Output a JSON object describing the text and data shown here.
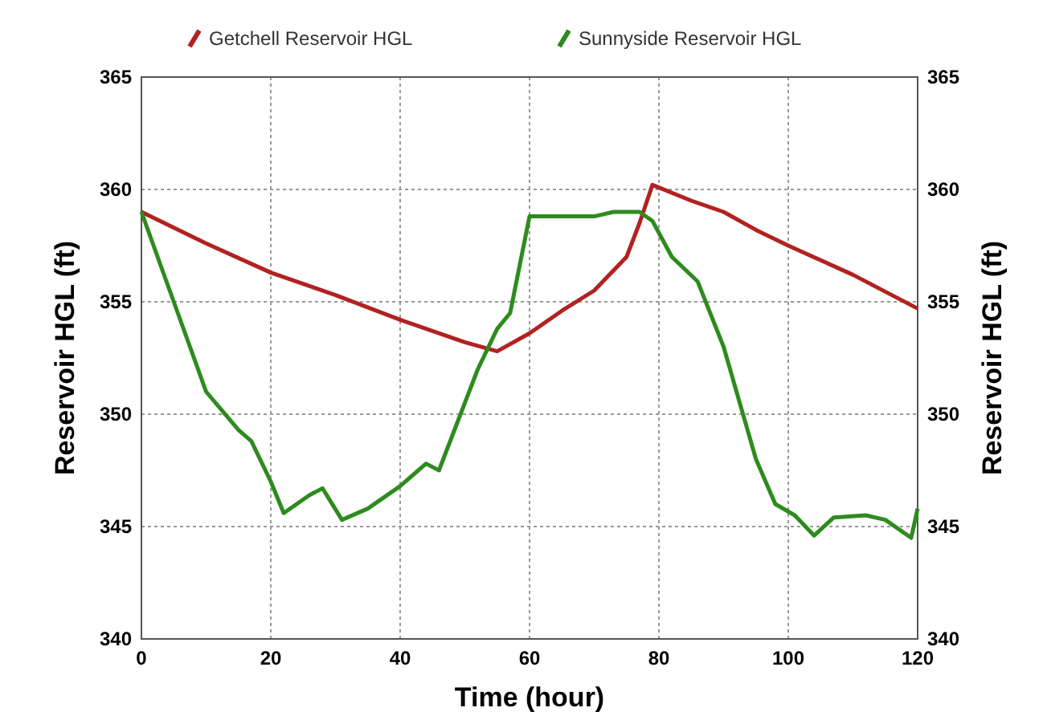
{
  "chart_data": {
    "type": "line",
    "xlabel": "Time (hour)",
    "ylabel": "Reservoir HGL (ft)",
    "y2label": "Reservoir HGL (ft)",
    "xlim": [
      0,
      120
    ],
    "xticks": [
      0,
      20,
      40,
      60,
      80,
      100,
      120
    ],
    "ylim": [
      340,
      365
    ],
    "yticks": [
      340,
      345,
      350,
      355,
      360,
      365
    ],
    "y2lim": [
      340,
      365
    ],
    "y2ticks": [
      340,
      345,
      350,
      355,
      360,
      365
    ],
    "grid": true,
    "legend": "top",
    "marker": "none",
    "line_style": "solid",
    "series": [
      {
        "name": "Getchell Reservoir HGL",
        "color": "#b22222",
        "x": [
          0,
          10,
          20,
          30,
          40,
          50,
          55,
          60,
          65,
          70,
          75,
          77,
          79,
          85,
          90,
          95,
          100,
          110,
          120
        ],
        "values": [
          359,
          357.6,
          356.3,
          355.3,
          354.2,
          353.2,
          352.8,
          353.6,
          354.6,
          355.5,
          357,
          358.5,
          360.2,
          359.5,
          359,
          358.2,
          357.5,
          356.2,
          354.7
        ]
      },
      {
        "name": "Sunnyside Reservoir HGL",
        "color": "#2e8b1e",
        "x": [
          0,
          5,
          10,
          15,
          17,
          20,
          22,
          26,
          28,
          31,
          35,
          40,
          44,
          46,
          48,
          52,
          55,
          57,
          60,
          62,
          70,
          73,
          77,
          79,
          82,
          86,
          90,
          95,
          98,
          101,
          104,
          107,
          112,
          115,
          119,
          120
        ],
        "values": [
          359,
          355,
          351,
          349.3,
          348.8,
          347,
          345.6,
          346.4,
          346.7,
          345.3,
          345.8,
          346.8,
          347.8,
          347.5,
          349,
          352,
          353.8,
          354.5,
          358.8,
          358.8,
          358.8,
          359,
          359,
          358.6,
          357,
          355.9,
          353,
          348,
          346,
          345.5,
          344.6,
          345.4,
          345.5,
          345.3,
          344.5,
          345.8
        ]
      }
    ]
  }
}
